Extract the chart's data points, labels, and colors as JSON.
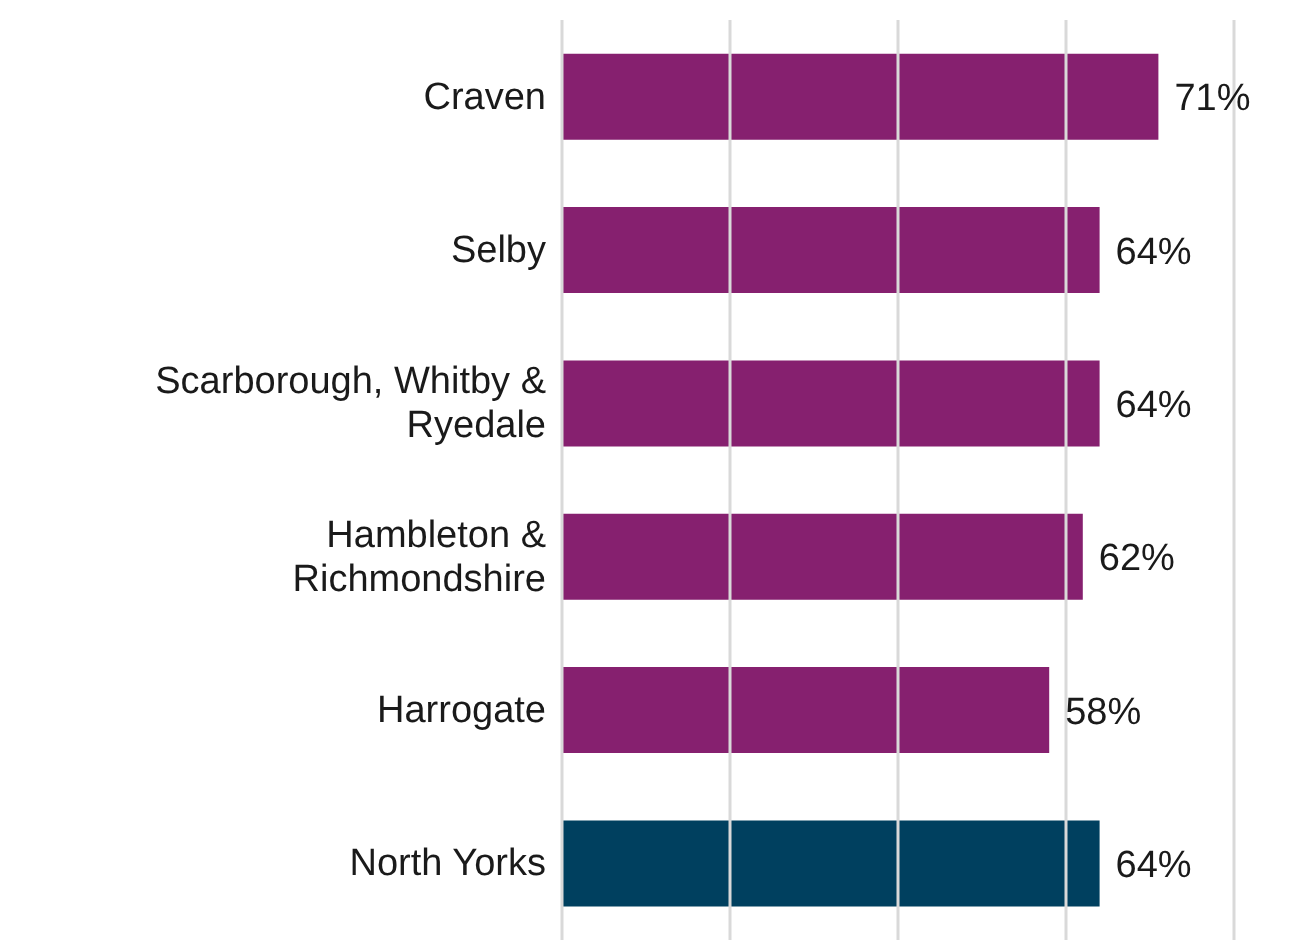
{
  "chart_data": {
    "type": "bar",
    "orientation": "horizontal",
    "categories": [
      "Craven",
      "Selby",
      "Scarborough, Whitby & Ryedale",
      "Hambleton & Richmondshire",
      "Harrogate",
      "North Yorks"
    ],
    "values": [
      71,
      64,
      64,
      62,
      58,
      64
    ],
    "colors": [
      "#86206f",
      "#86206f",
      "#86206f",
      "#86206f",
      "#86206f",
      "#00405f"
    ],
    "value_labels": [
      "71%",
      "64%",
      "64%",
      "62%",
      "58%",
      "64%"
    ],
    "xlim": [
      0,
      80
    ],
    "xticks": [
      {
        "value": 0,
        "label": null
      },
      {
        "value": 20,
        "label": null
      },
      {
        "value": 40,
        "label": null
      },
      {
        "value": 60,
        "label": null
      },
      {
        "value": 80,
        "label": null
      }
    ],
    "tick_labels": "y",
    "grid": "x"
  }
}
